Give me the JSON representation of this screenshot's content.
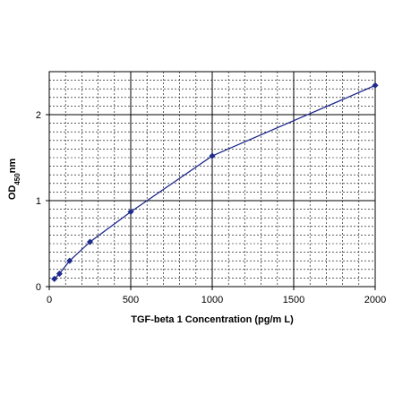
{
  "chart_data": {
    "type": "line",
    "title": "",
    "xlabel": "TGF-beta 1 Concentration (pg/m L)",
    "ylabel": {
      "prefix": "OD",
      "subscript": "450",
      "suffix": "nm"
    },
    "xlim": [
      0,
      2000
    ],
    "ylim": [
      0,
      2.5
    ],
    "x_ticks": [
      0,
      500,
      1000,
      1500,
      2000
    ],
    "y_ticks": [
      0,
      1,
      2
    ],
    "grid": true,
    "legend": "none",
    "series": [
      {
        "color": "#1f2a8c",
        "marker": "diamond",
        "x": [
          31.25,
          62.5,
          125,
          250,
          500,
          1000,
          2000
        ],
        "y": [
          0.09,
          0.15,
          0.3,
          0.52,
          0.87,
          1.52,
          2.34
        ]
      }
    ]
  }
}
